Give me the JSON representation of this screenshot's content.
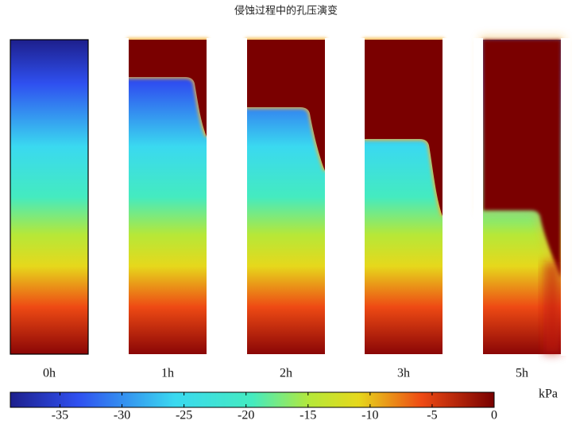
{
  "title": "侵蚀过程中的孔压演变",
  "panels": [
    {
      "label": "0h"
    },
    {
      "label": "1h"
    },
    {
      "label": "2h"
    },
    {
      "label": "3h"
    },
    {
      "label": "5h"
    }
  ],
  "colorbar": {
    "label": "kPa",
    "lim": [
      -39,
      0
    ],
    "ticks": [
      -35,
      -30,
      -25,
      -20,
      -15,
      -10,
      -5,
      0
    ]
  }
}
